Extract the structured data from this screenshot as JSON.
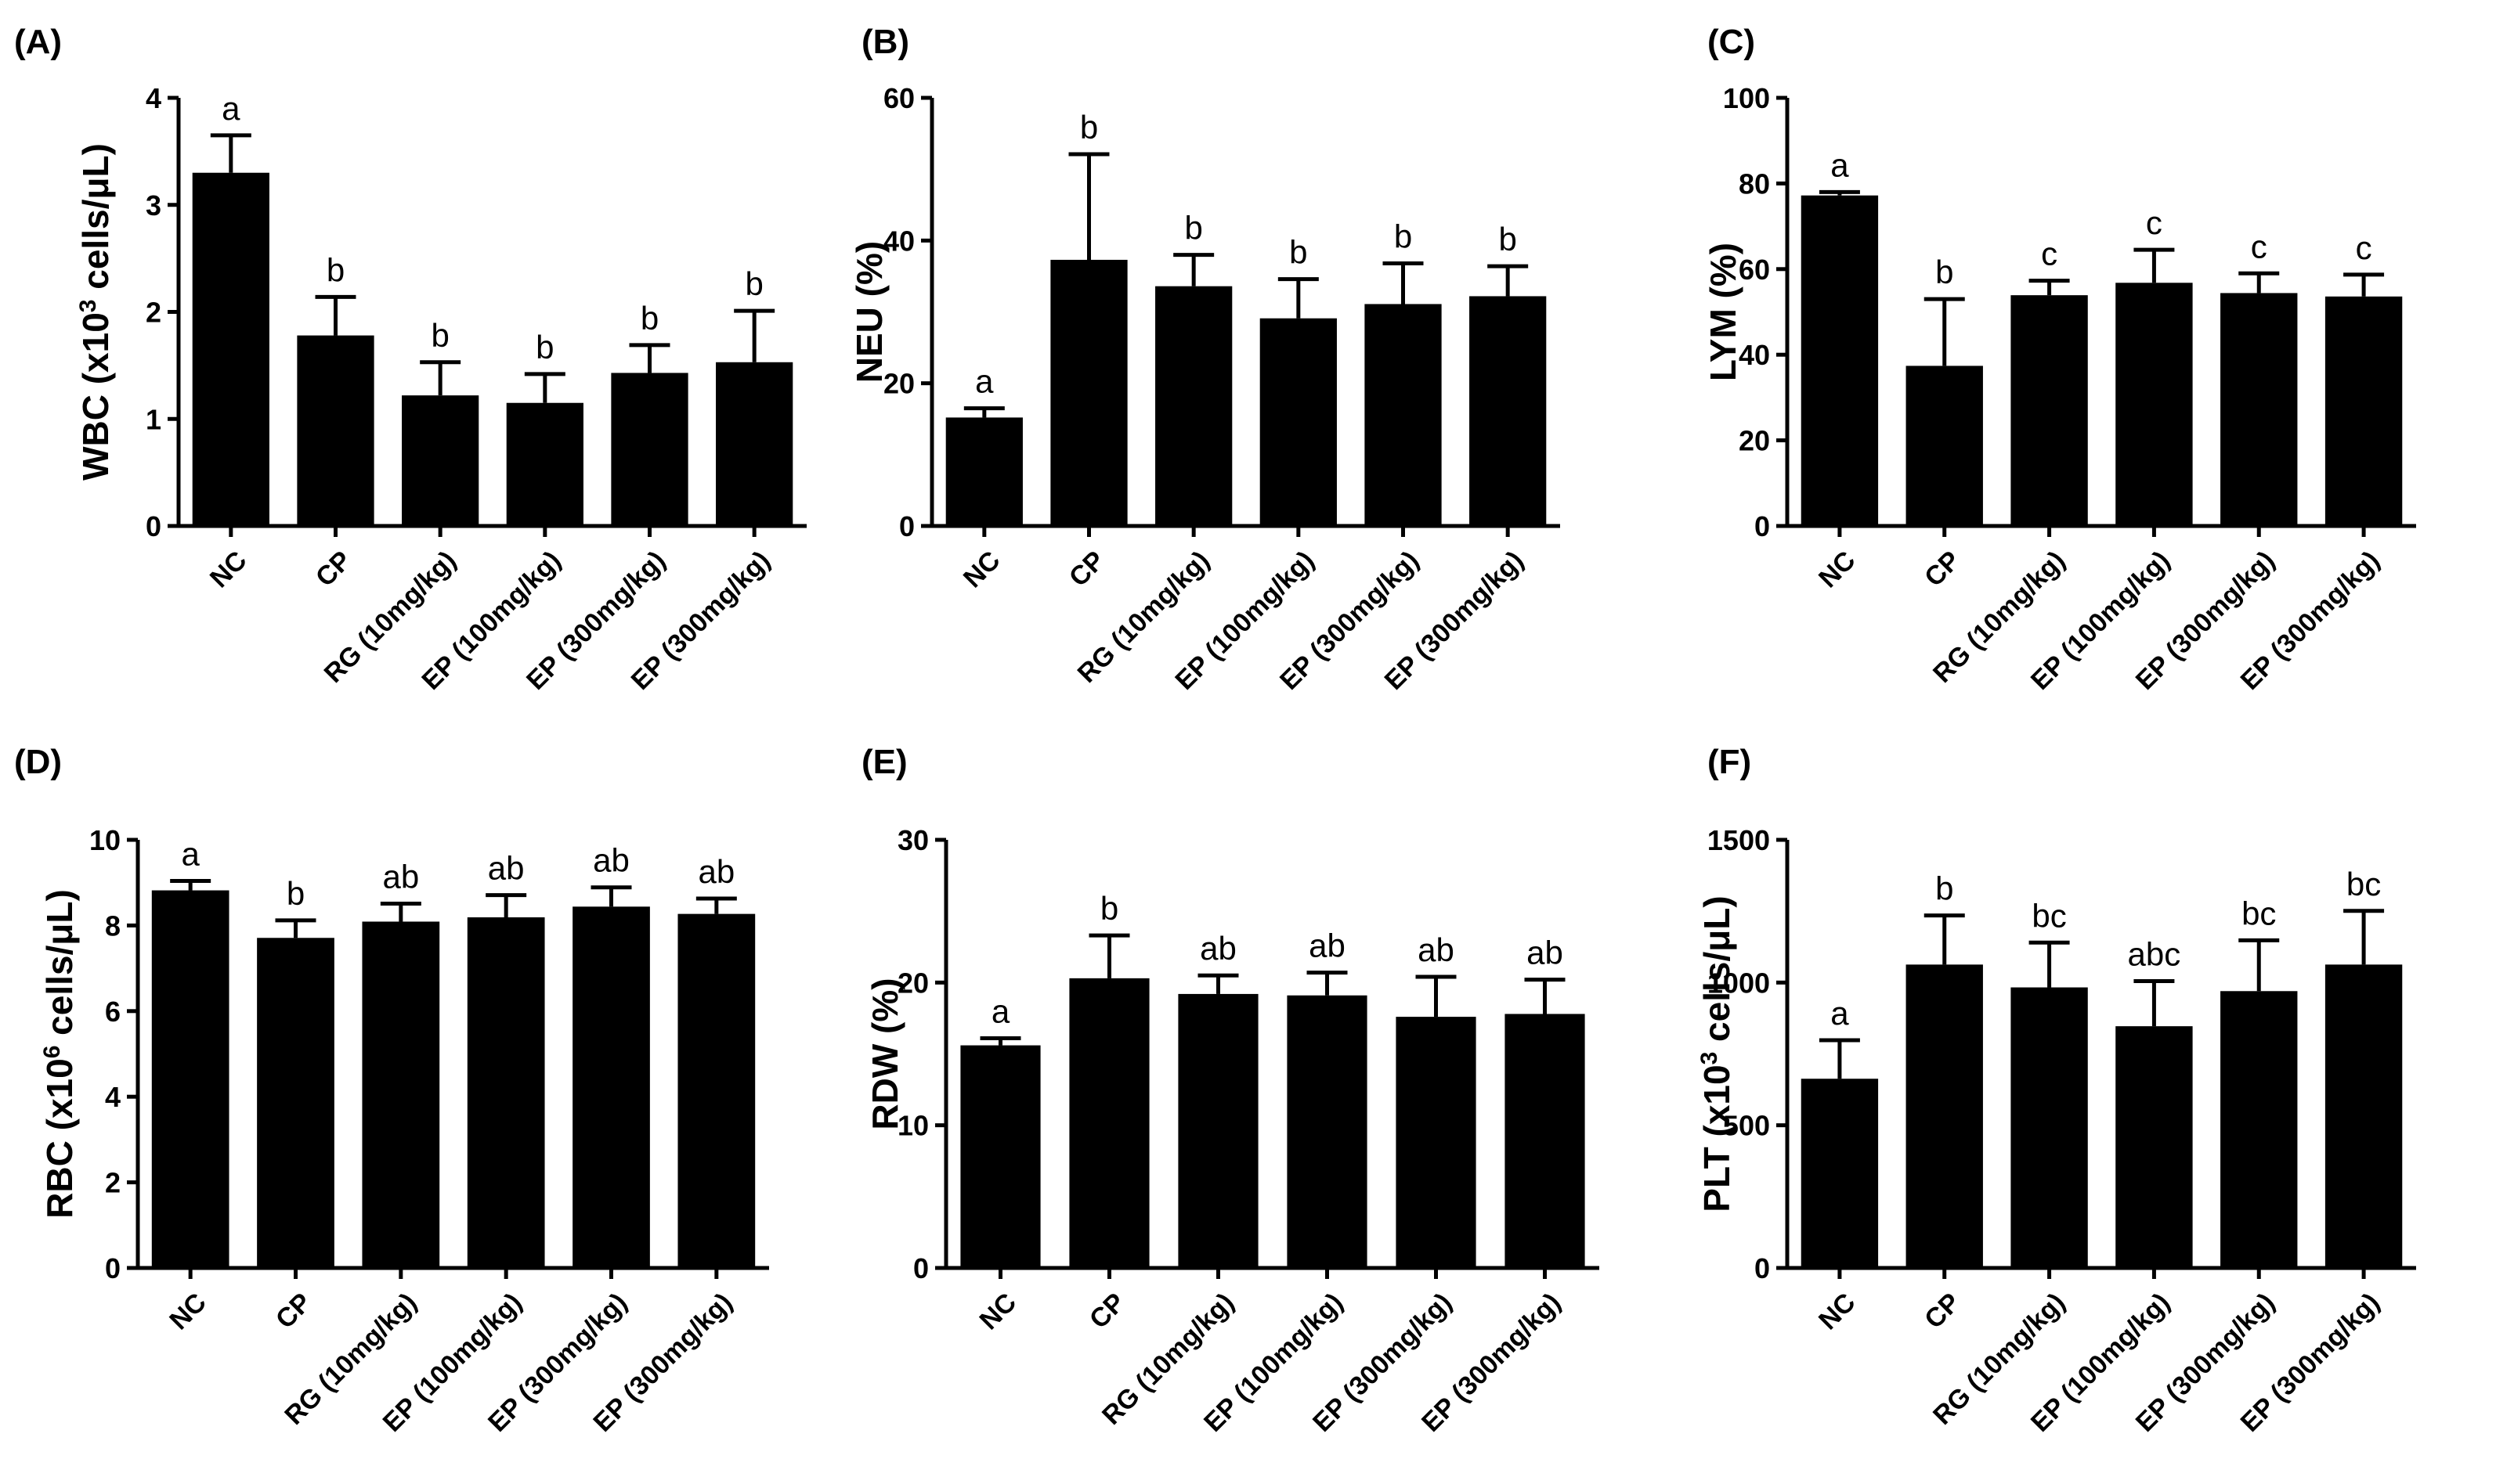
{
  "chart_data": [
    {
      "type": "bar",
      "panel": "(A)",
      "ylabel": "WBC (x10{3} cells/μL)",
      "ylim": [
        0,
        4
      ],
      "yticks": [
        0,
        1,
        2,
        3,
        4
      ],
      "categories": [
        "NC",
        "CP",
        "RG (10mg/kg)",
        "EP (100mg/kg)",
        "EP (300mg/kg)",
        "EP (300mg/kg)"
      ],
      "values": [
        3.3,
        1.78,
        1.22,
        1.15,
        1.43,
        1.53
      ],
      "errors": [
        0.35,
        0.36,
        0.31,
        0.27,
        0.26,
        0.48
      ],
      "letters": [
        "a",
        "b",
        "b",
        "b",
        "b",
        "b"
      ]
    },
    {
      "type": "bar",
      "panel": "(B)",
      "ylabel": "NEU (%)",
      "ylim": [
        0,
        60
      ],
      "yticks": [
        0,
        20,
        40,
        60
      ],
      "categories": [
        "NC",
        "CP",
        "RG (10mg/kg)",
        "EP (100mg/kg)",
        "EP (300mg/kg)",
        "EP (300mg/kg)"
      ],
      "values": [
        15.2,
        37.3,
        33.6,
        29.1,
        31.1,
        32.2
      ],
      "errors": [
        1.3,
        14.8,
        4.4,
        5.5,
        5.7,
        4.2
      ],
      "letters": [
        "a",
        "b",
        "b",
        "b",
        "b",
        "b"
      ]
    },
    {
      "type": "bar",
      "panel": "(C)",
      "ylabel": "LYM (%)",
      "ylim": [
        0,
        100
      ],
      "yticks": [
        0,
        20,
        40,
        60,
        80,
        100
      ],
      "categories": [
        "NC",
        "CP",
        "RG (10mg/kg)",
        "EP (100mg/kg)",
        "EP (300mg/kg)",
        "EP (300mg/kg)"
      ],
      "values": [
        77.2,
        37.4,
        53.9,
        56.8,
        54.4,
        53.6
      ],
      "errors": [
        0.8,
        15.6,
        3.4,
        7.7,
        4.6,
        5.1
      ],
      "letters": [
        "a",
        "b",
        "c",
        "c",
        "c",
        "c"
      ]
    },
    {
      "type": "bar",
      "panel": "(D)",
      "ylabel": "RBC (x10{6} cells/μL)",
      "ylim": [
        0,
        10
      ],
      "yticks": [
        0,
        2,
        4,
        6,
        8,
        10
      ],
      "categories": [
        "NC",
        "CP",
        "RG (10mg/kg)",
        "EP (100mg/kg)",
        "EP (300mg/kg)",
        "EP (300mg/kg)"
      ],
      "values": [
        8.82,
        7.71,
        8.09,
        8.19,
        8.44,
        8.27
      ],
      "errors": [
        0.22,
        0.41,
        0.42,
        0.52,
        0.45,
        0.36
      ],
      "letters": [
        "a",
        "b",
        "ab",
        "ab",
        "ab",
        "ab"
      ]
    },
    {
      "type": "bar",
      "panel": "(E)",
      "ylabel": "RDW (%)",
      "ylim": [
        0,
        30
      ],
      "yticks": [
        0,
        10,
        20,
        30
      ],
      "categories": [
        "NC",
        "CP",
        "RG (10mg/kg)",
        "EP (100mg/kg)",
        "EP (300mg/kg)",
        "EP (300mg/kg)"
      ],
      "values": [
        15.6,
        20.3,
        19.2,
        19.1,
        17.6,
        17.8
      ],
      "errors": [
        0.5,
        3.0,
        1.3,
        1.6,
        2.8,
        2.4
      ],
      "letters": [
        "a",
        "b",
        "ab",
        "ab",
        "ab",
        "ab"
      ]
    },
    {
      "type": "bar",
      "panel": "(F)",
      "ylabel": "PLT (x10{3} cells/μL)",
      "ylim": [
        0,
        1500
      ],
      "yticks": [
        0,
        500,
        1000,
        1500
      ],
      "categories": [
        "NC",
        "CP",
        "RG (10mg/kg)",
        "EP (100mg/kg)",
        "EP (300mg/kg)",
        "EP (300mg/kg)"
      ],
      "values": [
        663,
        1063,
        983,
        847,
        970,
        1063
      ],
      "errors": [
        135,
        172,
        157,
        158,
        178,
        188
      ],
      "letters": [
        "a",
        "b",
        "bc",
        "abc",
        "bc",
        "bc"
      ]
    }
  ]
}
